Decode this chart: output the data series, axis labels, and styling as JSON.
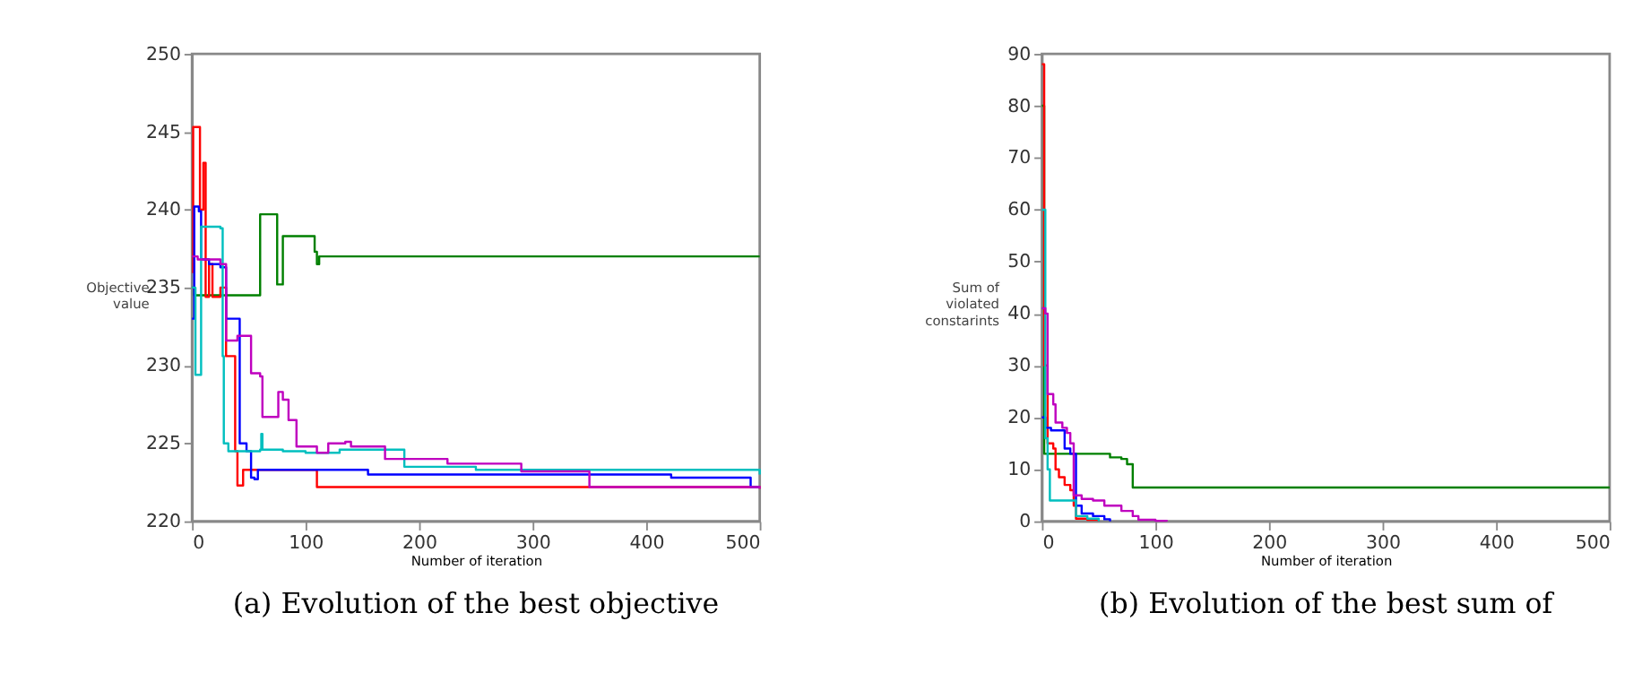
{
  "chart_data": [
    {
      "type": "step",
      "xlabel": "Number of iteration",
      "ylabel": "Objective\nvalue",
      "annotations": [
        "(a) Evolution of the best objective"
      ],
      "xlim": [
        0,
        500
      ],
      "xticks": [
        0,
        100,
        200,
        300,
        400,
        500
      ],
      "ylim": [
        220,
        250
      ],
      "yticks": [
        220,
        225,
        230,
        235,
        240,
        245,
        250
      ],
      "grid": false,
      "legend": false,
      "series": [
        {
          "color": "#008000",
          "x": [
            0,
            2,
            60,
            70,
            75,
            80,
            108,
            110,
            112,
            500
          ],
          "values": [
            235,
            234.5,
            239.7,
            239.7,
            235.2,
            238.3,
            237.3,
            236.5,
            237,
            237
          ]
        },
        {
          "color": "#ff0000",
          "x": [
            0,
            1,
            5,
            7,
            10,
            12,
            15,
            18,
            25,
            30,
            35,
            38,
            40,
            43,
            45,
            108,
            110,
            500
          ],
          "values": [
            236,
            245.3,
            245.3,
            240,
            243,
            234.4,
            236.5,
            234.4,
            235,
            230.6,
            230.6,
            224.5,
            222.3,
            222.3,
            223.3,
            223.3,
            222.2,
            222.1
          ]
        },
        {
          "color": "#0000ff",
          "x": [
            0,
            2,
            6,
            8,
            15,
            25,
            30,
            40,
            42,
            48,
            52,
            55,
            58,
            150,
            155,
            420,
            422,
            490,
            492,
            500
          ],
          "values": [
            233,
            240.2,
            239.9,
            236.8,
            236.5,
            236.3,
            233,
            233,
            225,
            224.5,
            222.8,
            222.7,
            223.3,
            223.3,
            223,
            223,
            222.8,
            222.8,
            222.2,
            222.2
          ]
        },
        {
          "color": "#00bfbf",
          "x": [
            0,
            3,
            7,
            8,
            15,
            25,
            27,
            28,
            32,
            60,
            61,
            62,
            80,
            100,
            130,
            185,
            187,
            250,
            500
          ],
          "values": [
            235,
            229.4,
            229.4,
            238.9,
            238.9,
            238.8,
            230.6,
            225,
            224.5,
            224.6,
            225.6,
            224.6,
            224.5,
            224.4,
            224.6,
            224.6,
            223.5,
            223.3,
            223
          ]
        },
        {
          "color": "#bf00bf",
          "x": [
            0,
            5,
            25,
            30,
            40,
            50,
            52,
            60,
            62,
            75,
            76,
            80,
            85,
            92,
            110,
            120,
            135,
            140,
            165,
            170,
            225,
            290,
            350,
            500
          ],
          "values": [
            237,
            236.8,
            236.5,
            231.6,
            231.9,
            231.9,
            229.5,
            229.3,
            226.7,
            226.7,
            228.3,
            227.8,
            226.5,
            224.8,
            224.4,
            225,
            225.1,
            224.8,
            224.8,
            224,
            223.7,
            223.2,
            222.2,
            222.1
          ]
        }
      ]
    },
    {
      "type": "step",
      "xlabel": "Number of iteration",
      "ylabel": "Sum of\nviolated\nconstarints",
      "annotations": [
        "(b) Evolution of the best sum of"
      ],
      "xlim": [
        0,
        500
      ],
      "xticks": [
        0,
        100,
        200,
        300,
        400,
        500
      ],
      "ylim": [
        0,
        90
      ],
      "yticks": [
        0,
        10,
        20,
        30,
        40,
        50,
        60,
        70,
        80,
        90
      ],
      "grid": false,
      "legend": false,
      "series": [
        {
          "color": "#008000",
          "x": [
            0,
            2,
            58,
            60,
            70,
            75,
            80,
            500
          ],
          "values": [
            80,
            13,
            13,
            12.3,
            12,
            11,
            6.5,
            6.5
          ]
        },
        {
          "color": "#ff0000",
          "x": [
            0,
            2,
            5,
            10,
            12,
            15,
            20,
            25,
            28,
            30,
            40,
            50
          ],
          "values": [
            88,
            30,
            15,
            14,
            10,
            8.5,
            7,
            6,
            3,
            0.5,
            0.3,
            0
          ]
        },
        {
          "color": "#0000ff",
          "x": [
            0,
            3,
            8,
            18,
            20,
            25,
            30,
            35,
            40,
            45,
            55,
            60
          ],
          "values": [
            20,
            18,
            17.5,
            17.5,
            14,
            13,
            3,
            1.5,
            1.5,
            1,
            0.4,
            0
          ]
        },
        {
          "color": "#00bfbf",
          "x": [
            0,
            3,
            5,
            7,
            25,
            30,
            40,
            50
          ],
          "values": [
            60,
            16,
            10,
            4,
            4,
            1,
            0.5,
            0
          ]
        },
        {
          "color": "#bf00bf",
          "x": [
            0,
            3,
            5,
            10,
            12,
            18,
            22,
            25,
            28,
            35,
            45,
            55,
            70,
            80,
            85,
            100,
            110
          ],
          "values": [
            41,
            40,
            24.5,
            22.5,
            19,
            18,
            17,
            15,
            5,
            4.3,
            4,
            3,
            2,
            1,
            0.3,
            0.1,
            0
          ]
        }
      ]
    }
  ]
}
